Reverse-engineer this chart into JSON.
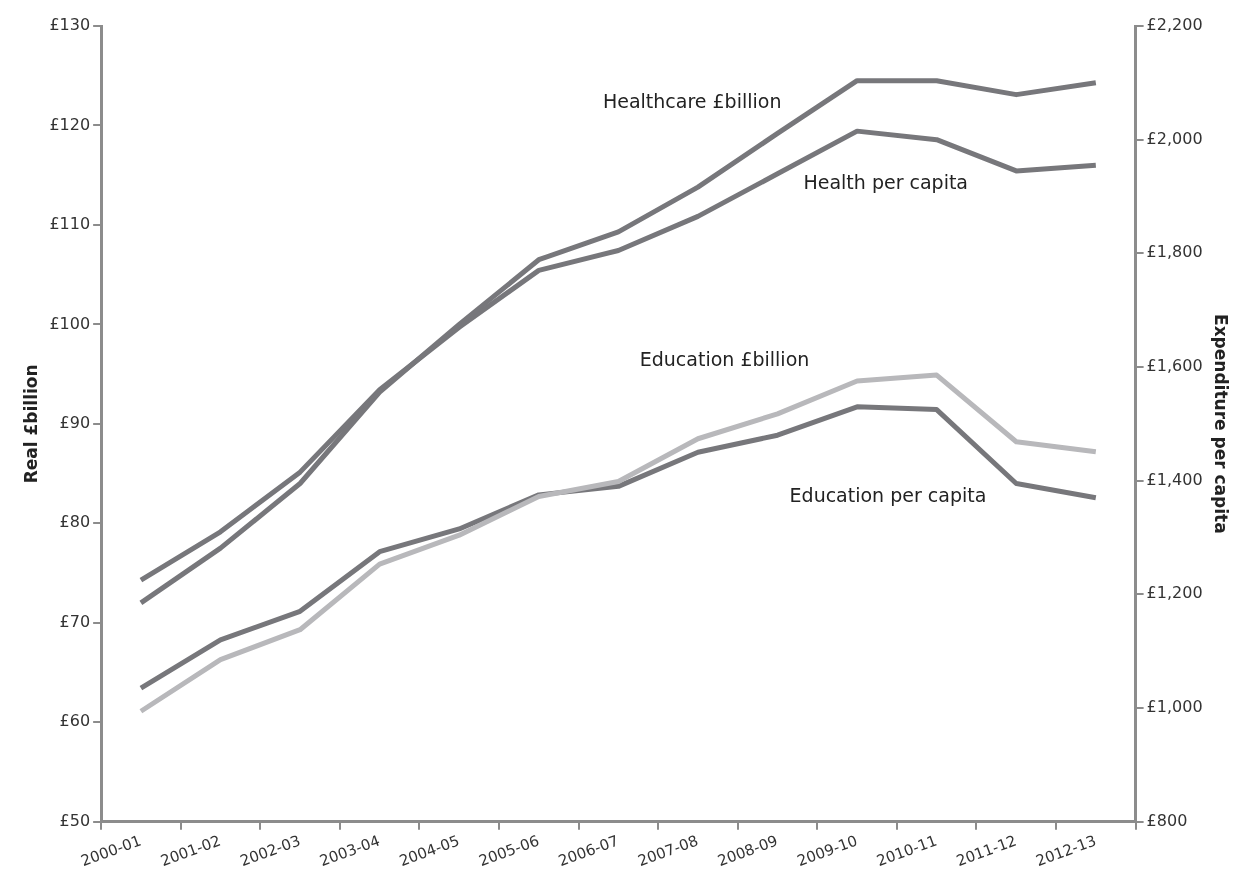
{
  "chart_data": {
    "type": "line",
    "ylabel": "Real £billion",
    "y2label": "Expenditure per capita",
    "categories": [
      "2000-01",
      "2001-02",
      "2002-03",
      "2003-04",
      "2004-05",
      "2005-06",
      "2006-07",
      "2007-08",
      "2008-09",
      "2009-10",
      "2010-11",
      "2011-12",
      "2012-13"
    ],
    "ylim": [
      50,
      130
    ],
    "yticks": [
      {
        "value": 50,
        "label": "£50"
      },
      {
        "value": 60,
        "label": "£60"
      },
      {
        "value": 70,
        "label": "£70"
      },
      {
        "value": 80,
        "label": "£80"
      },
      {
        "value": 90,
        "label": "£90"
      },
      {
        "value": 100,
        "label": "£100"
      },
      {
        "value": 110,
        "label": "£110"
      },
      {
        "value": 120,
        "label": "£120"
      },
      {
        "value": 130,
        "label": "£130"
      }
    ],
    "y2lim": [
      800,
      2200
    ],
    "y2ticks": [
      {
        "value": 800,
        "label": "£800"
      },
      {
        "value": 1000,
        "label": "£1,000"
      },
      {
        "value": 1200,
        "label": "£1,200"
      },
      {
        "value": 1400,
        "label": "£1,400"
      },
      {
        "value": 1600,
        "label": "£1,600"
      },
      {
        "value": 1800,
        "label": "£1,800"
      },
      {
        "value": 2000,
        "label": "£2,000"
      },
      {
        "value": 2200,
        "label": "£2,200"
      }
    ],
    "series": [
      {
        "name": "Healthcare £billion",
        "color": "#77777b",
        "values": [
          72.0,
          77.5,
          84.0,
          93.2,
          100.0,
          106.5,
          109.3,
          113.8,
          119.2,
          124.5,
          124.5,
          123.1,
          124.3
        ]
      },
      {
        "name": "Health per capita",
        "color": "#77777b",
        "axis": "y2",
        "values": [
          1225,
          1310,
          1415,
          1560,
          1670,
          1770,
          1805,
          1865,
          1940,
          2015,
          2000,
          1945,
          1955
        ]
      },
      {
        "name": "Education £billion",
        "color": "#b8b8bb",
        "values": [
          61.1,
          66.3,
          69.3,
          75.9,
          78.8,
          82.7,
          84.2,
          88.5,
          91.0,
          94.3,
          94.9,
          88.2,
          87.2
        ]
      },
      {
        "name": "Education per capita",
        "color": "#77777b",
        "axis": "y2",
        "values": [
          1035,
          1120,
          1170,
          1275,
          1315,
          1375,
          1390,
          1450,
          1480,
          1530,
          1525,
          1395,
          1370
        ]
      }
    ],
    "grid": false,
    "legend": false,
    "marker": "none",
    "line_style": "solid"
  }
}
